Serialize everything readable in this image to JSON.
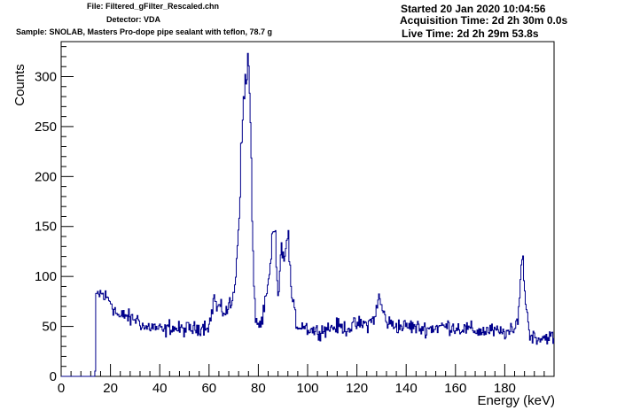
{
  "header": {
    "file": "File: Filtered_gFilter_Rescaled.chn",
    "detector": "Detector: VDA",
    "sample": "Sample: SNOLAB, Masters Pro-dope pipe sealant with teflon, 78.7 g",
    "started": "Started 20 Jan 2020 10:04:56",
    "acquisition_time": "Acquisition Time: 2d 2h 30m 0.0s",
    "live_time": "Live Time: 2d 2h 29m 53.8s"
  },
  "chart_data": {
    "type": "line",
    "title": "",
    "xlabel": "Energy (keV)",
    "ylabel": "Counts",
    "xlim": [
      0,
      200
    ],
    "ylim": [
      0,
      335
    ],
    "x_ticks": [
      0,
      20,
      40,
      60,
      80,
      100,
      120,
      140,
      160,
      180
    ],
    "y_ticks": [
      0,
      50,
      100,
      150,
      200,
      250,
      300
    ],
    "grid": false,
    "legend": "none",
    "line_color": "#00008b",
    "series": [
      {
        "x": [
          0,
          13.8,
          14.2,
          16,
          18,
          20,
          22,
          24,
          26,
          28,
          30,
          32,
          34,
          36,
          38,
          40,
          42,
          44,
          46,
          48,
          50,
          52,
          54,
          56,
          58,
          60,
          61,
          62,
          63,
          64,
          65,
          66,
          67,
          68,
          69,
          70,
          71,
          72,
          73,
          74,
          74.5,
          75,
          75.5,
          76,
          76.5,
          77,
          77.5,
          78,
          78.5,
          79,
          79.5,
          80,
          81,
          82,
          83,
          84,
          85,
          86,
          87,
          87.5,
          88,
          88.5,
          89,
          90,
          91,
          92,
          92.5,
          93,
          93.5,
          94,
          95,
          96,
          98,
          100,
          104,
          108,
          112,
          116,
          120,
          124,
          126,
          128,
          129,
          130,
          131,
          132,
          134,
          138,
          142,
          146,
          150,
          154,
          158,
          162,
          166,
          170,
          174,
          178,
          182,
          184,
          185,
          186,
          186.5,
          187,
          187.5,
          188,
          189,
          190,
          194,
          198,
          200
        ],
        "y": [
          0,
          0,
          80,
          83,
          79,
          76,
          65,
          58,
          62,
          57,
          58,
          55,
          48,
          50,
          49,
          47,
          45,
          50,
          48,
          47,
          47,
          48,
          47,
          49,
          50,
          52,
          60,
          82,
          68,
          70,
          65,
          66,
          65,
          70,
          72,
          80,
          110,
          150,
          220,
          270,
          290,
          310,
          300,
          318,
          280,
          240,
          160,
          100,
          75,
          60,
          55,
          52,
          52,
          60,
          75,
          90,
          110,
          145,
          140,
          100,
          85,
          90,
          120,
          125,
          110,
          160,
          120,
          100,
          85,
          70,
          60,
          50,
          52,
          48,
          45,
          48,
          50,
          48,
          52,
          52,
          55,
          65,
          80,
          70,
          62,
          55,
          52,
          50,
          50,
          48,
          48,
          50,
          50,
          48,
          47,
          45,
          46,
          44,
          44,
          45,
          55,
          80,
          105,
          118,
          112,
          90,
          65,
          42,
          38,
          40,
          38
        ]
      }
    ]
  }
}
